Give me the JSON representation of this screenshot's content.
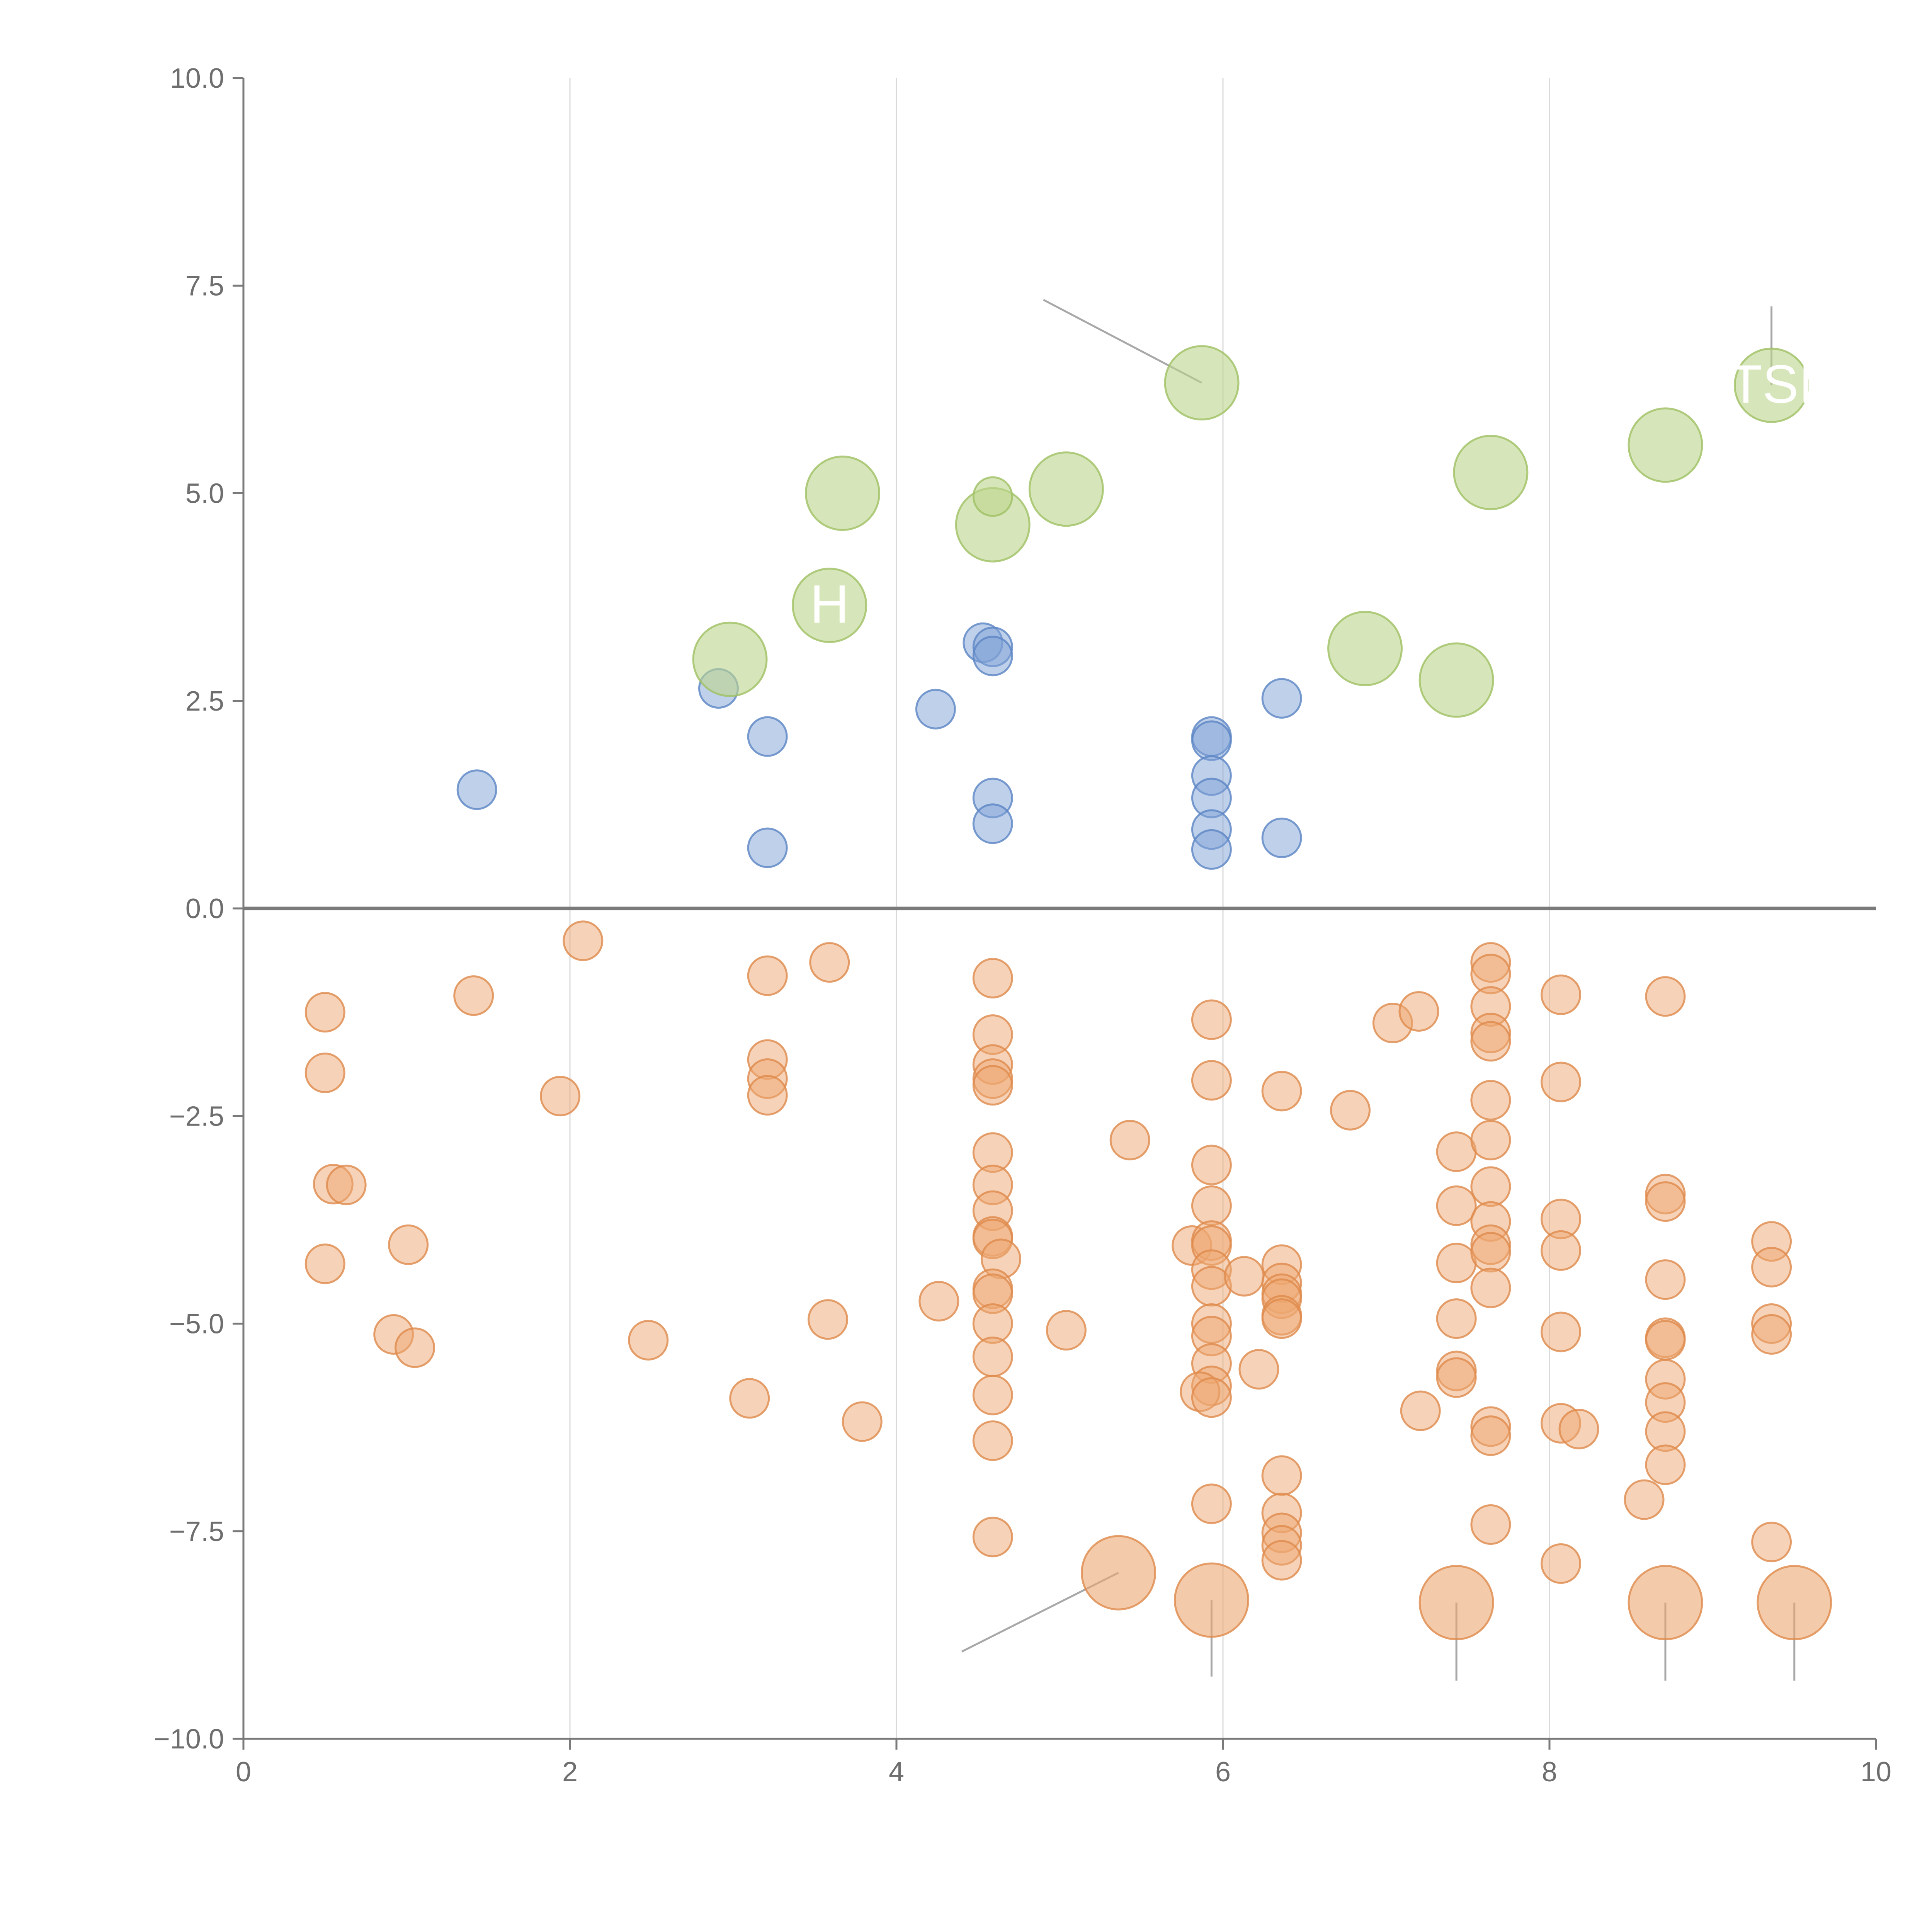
{
  "chart_data": {
    "type": "scatter",
    "title": "",
    "xlabel": "",
    "ylabel": "",
    "xlim": [
      0,
      10
    ],
    "ylim": [
      -10,
      10
    ],
    "x_ticks": [
      "0",
      "2",
      "4",
      "6",
      "8",
      "10"
    ],
    "y_ticks": [
      "10.0",
      "7.5",
      "5.0",
      "2.5",
      "0.0",
      "−2.5",
      "−5.0",
      "−7.5",
      "−10.0"
    ],
    "grid": "vertical",
    "colors": {
      "blue": "#7fa2d6",
      "blue_stroke": "#5b84c4",
      "orange": "#eda871",
      "orange_stroke": "#de8a4b",
      "green": "#bcd58c",
      "green_stroke": "#9fc063"
    },
    "series": [
      {
        "name": "blue",
        "size": "small",
        "points": [
          [
            1.43,
            1.43
          ],
          [
            2.91,
            2.65
          ],
          [
            3.21,
            2.07
          ],
          [
            3.21,
            0.73
          ],
          [
            4.24,
            2.4
          ],
          [
            4.53,
            3.2
          ],
          [
            4.59,
            3.15
          ],
          [
            4.59,
            3.04
          ],
          [
            4.59,
            1.33
          ],
          [
            4.59,
            1.02
          ],
          [
            5.93,
            2.07
          ],
          [
            5.93,
            2.02
          ],
          [
            5.93,
            1.6
          ],
          [
            5.93,
            1.33
          ],
          [
            5.93,
            0.95
          ],
          [
            5.93,
            0.71
          ],
          [
            6.36,
            2.53
          ],
          [
            6.36,
            0.85
          ]
        ]
      },
      {
        "name": "green",
        "size": "large",
        "points": [
          [
            2.98,
            3.0
          ],
          [
            3.59,
            3.65
          ],
          [
            3.67,
            5.0
          ],
          [
            4.59,
            4.62
          ],
          [
            5.04,
            5.05
          ],
          [
            5.87,
            6.33
          ],
          [
            6.87,
            3.13
          ],
          [
            7.43,
            2.75
          ],
          [
            7.64,
            5.25
          ],
          [
            8.71,
            5.58
          ],
          [
            9.36,
            6.3
          ]
        ]
      },
      {
        "name": "green-small",
        "size": "small",
        "points": [
          [
            4.59,
            4.96
          ]
        ]
      },
      {
        "name": "orange",
        "size": "small",
        "points": [
          [
            0.5,
            -1.25
          ],
          [
            0.5,
            -1.98
          ],
          [
            0.55,
            -3.32
          ],
          [
            0.63,
            -3.33
          ],
          [
            0.5,
            -4.28
          ],
          [
            1.01,
            -4.05
          ],
          [
            0.92,
            -5.13
          ],
          [
            1.05,
            -5.29
          ],
          [
            1.41,
            -1.05
          ],
          [
            1.94,
            -2.26
          ],
          [
            2.08,
            -0.39
          ],
          [
            2.48,
            -5.2
          ],
          [
            3.1,
            -5.9
          ],
          [
            3.21,
            -0.81
          ],
          [
            3.21,
            -1.82
          ],
          [
            3.21,
            -2.05
          ],
          [
            3.21,
            -2.25
          ],
          [
            3.59,
            -0.65
          ],
          [
            3.58,
            -4.95
          ],
          [
            3.79,
            -6.18
          ],
          [
            4.26,
            -4.73
          ],
          [
            4.59,
            -0.84
          ],
          [
            4.59,
            -1.52
          ],
          [
            4.59,
            -1.88
          ],
          [
            4.59,
            -2.05
          ],
          [
            4.59,
            -2.13
          ],
          [
            4.59,
            -2.94
          ],
          [
            4.59,
            -3.33
          ],
          [
            4.59,
            -3.64
          ],
          [
            4.59,
            -3.95
          ],
          [
            4.59,
            -3.98
          ],
          [
            4.64,
            -4.22
          ],
          [
            4.59,
            -4.58
          ],
          [
            4.59,
            -4.64
          ],
          [
            4.59,
            -5.0
          ],
          [
            4.59,
            -5.4
          ],
          [
            4.59,
            -5.86
          ],
          [
            4.59,
            -6.41
          ],
          [
            4.59,
            -7.57
          ],
          [
            5.04,
            -5.08
          ],
          [
            5.43,
            -2.79
          ],
          [
            5.81,
            -4.06
          ],
          [
            5.93,
            -1.34
          ],
          [
            5.93,
            -2.07
          ],
          [
            5.93,
            -3.09
          ],
          [
            5.93,
            -3.58
          ],
          [
            5.93,
            -4.0
          ],
          [
            5.93,
            -4.06
          ],
          [
            5.93,
            -4.35
          ],
          [
            5.93,
            -4.55
          ],
          [
            5.93,
            -5.0
          ],
          [
            5.93,
            -5.15
          ],
          [
            5.93,
            -5.48
          ],
          [
            5.93,
            -5.75
          ],
          [
            5.86,
            -5.82
          ],
          [
            5.93,
            -5.89
          ],
          [
            5.93,
            -7.17
          ],
          [
            6.13,
            -4.43
          ],
          [
            6.22,
            -5.55
          ],
          [
            6.36,
            -2.2
          ],
          [
            6.36,
            -4.29
          ],
          [
            6.36,
            -4.51
          ],
          [
            6.36,
            -4.64
          ],
          [
            6.36,
            -4.7
          ],
          [
            6.36,
            -4.9
          ],
          [
            6.36,
            -4.94
          ],
          [
            6.36,
            -6.83
          ],
          [
            6.36,
            -7.28
          ],
          [
            6.36,
            -7.52
          ],
          [
            6.36,
            -7.67
          ],
          [
            6.36,
            -7.85
          ],
          [
            6.78,
            -2.43
          ],
          [
            7.04,
            -1.38
          ],
          [
            7.2,
            -1.24
          ],
          [
            7.21,
            -6.05
          ],
          [
            7.43,
            -2.93
          ],
          [
            7.43,
            -3.58
          ],
          [
            7.43,
            -4.27
          ],
          [
            7.43,
            -4.94
          ],
          [
            7.43,
            -5.57
          ],
          [
            7.43,
            -5.65
          ],
          [
            7.64,
            -0.65
          ],
          [
            7.64,
            -0.79
          ],
          [
            7.64,
            -1.18
          ],
          [
            7.64,
            -1.5
          ],
          [
            7.64,
            -1.6
          ],
          [
            7.64,
            -2.31
          ],
          [
            7.64,
            -2.79
          ],
          [
            7.64,
            -3.35
          ],
          [
            7.64,
            -3.77
          ],
          [
            7.64,
            -4.05
          ],
          [
            7.64,
            -4.14
          ],
          [
            7.64,
            -4.57
          ],
          [
            7.64,
            -6.24
          ],
          [
            7.64,
            -6.35
          ],
          [
            7.64,
            -7.42
          ],
          [
            8.07,
            -1.04
          ],
          [
            8.07,
            -2.09
          ],
          [
            8.07,
            -3.74
          ],
          [
            8.07,
            -4.12
          ],
          [
            8.07,
            -5.1
          ],
          [
            8.07,
            -6.2
          ],
          [
            8.18,
            -6.27
          ],
          [
            8.07,
            -7.89
          ],
          [
            8.58,
            -7.12
          ],
          [
            8.71,
            -1.06
          ],
          [
            8.71,
            -3.44
          ],
          [
            8.71,
            -3.53
          ],
          [
            8.71,
            -4.47
          ],
          [
            8.71,
            -5.17
          ],
          [
            8.71,
            -5.2
          ],
          [
            8.71,
            -5.67
          ],
          [
            8.71,
            -5.95
          ],
          [
            8.71,
            -6.3
          ],
          [
            8.71,
            -6.7
          ],
          [
            9.36,
            -4.01
          ],
          [
            9.36,
            -4.32
          ],
          [
            9.36,
            -5.0
          ],
          [
            9.36,
            -5.13
          ],
          [
            9.36,
            -7.63
          ]
        ]
      },
      {
        "name": "orange-large",
        "size": "large",
        "points": [
          [
            5.36,
            -8.0
          ],
          [
            5.93,
            -8.33
          ],
          [
            7.43,
            -8.36
          ],
          [
            8.71,
            -8.36
          ],
          [
            9.5,
            -8.36
          ]
        ]
      }
    ],
    "annotations": [
      {
        "label": "H",
        "x": 3.59,
        "y": 3.65
      },
      {
        "label": "TSI",
        "x": 9.36,
        "y": 6.3
      }
    ]
  }
}
